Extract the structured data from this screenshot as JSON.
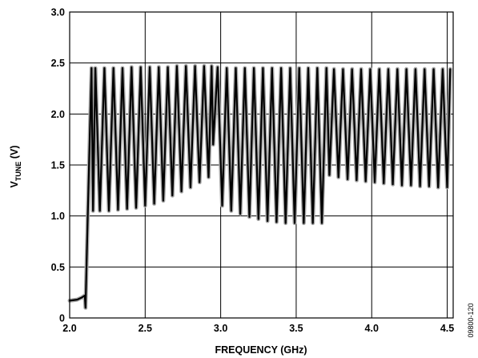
{
  "chart_data": {
    "type": "line",
    "xlabel": "FREQUENCY (GHz)",
    "ylabel": {
      "main": "V",
      "sub": "TUNE",
      "unit": " (V)"
    },
    "xlim": [
      2.0,
      4.5
    ],
    "ylim": [
      0,
      3.0
    ],
    "x_ticks": [
      2.0,
      2.5,
      3.0,
      3.5,
      4.0,
      4.5
    ],
    "x_tick_labels": [
      "2.0",
      "2.5",
      "3.0",
      "3.5",
      "4.0",
      "4.5"
    ],
    "y_ticks": [
      0,
      0.5,
      1.0,
      1.5,
      2.0,
      2.5,
      3.0
    ],
    "y_tick_labels": [
      "0",
      "0.5",
      "1.0",
      "1.5",
      "2.0",
      "2.5",
      "3.0"
    ],
    "grid": true,
    "series": [
      {
        "color": "#000000",
        "halo_color": "#a9a9a9",
        "x": [
          2.0,
          2.05,
          2.08,
          2.1,
          2.105,
          2.12,
          2.145,
          2.155,
          2.17,
          2.2,
          2.23,
          2.26,
          2.29,
          2.32,
          2.35,
          2.38,
          2.41,
          2.44,
          2.47,
          2.5,
          2.53,
          2.56,
          2.59,
          2.62,
          2.65,
          2.68,
          2.71,
          2.74,
          2.77,
          2.8,
          2.83,
          2.86,
          2.89,
          2.92,
          2.94,
          2.95,
          2.98,
          3.01,
          3.04,
          3.07,
          3.1,
          3.13,
          3.16,
          3.19,
          3.22,
          3.25,
          3.28,
          3.31,
          3.34,
          3.37,
          3.4,
          3.43,
          3.46,
          3.49,
          3.52,
          3.55,
          3.58,
          3.61,
          3.64,
          3.67,
          3.7,
          3.72,
          3.75,
          3.78,
          3.81,
          3.84,
          3.87,
          3.9,
          3.93,
          3.96,
          3.99,
          4.02,
          4.05,
          4.08,
          4.11,
          4.14,
          4.17,
          4.2,
          4.23,
          4.26,
          4.29,
          4.32,
          4.35,
          4.38,
          4.41,
          4.44,
          4.47,
          4.5,
          4.52
        ],
        "y": [
          0.17,
          0.18,
          0.2,
          0.22,
          0.1,
          1.0,
          2.45,
          1.05,
          2.45,
          1.05,
          2.45,
          1.05,
          2.45,
          1.06,
          2.45,
          1.07,
          2.46,
          1.08,
          2.46,
          1.1,
          2.46,
          1.12,
          2.46,
          1.15,
          2.46,
          1.2,
          2.47,
          1.24,
          2.47,
          1.28,
          2.47,
          1.33,
          2.47,
          1.38,
          2.47,
          1.7,
          2.46,
          1.1,
          2.45,
          1.05,
          2.45,
          1.02,
          2.45,
          0.99,
          2.45,
          0.97,
          2.45,
          0.95,
          2.45,
          0.94,
          2.45,
          0.93,
          2.45,
          0.93,
          2.45,
          0.93,
          2.45,
          0.93,
          2.45,
          0.93,
          2.45,
          1.4,
          2.44,
          1.38,
          2.44,
          1.36,
          2.44,
          1.35,
          2.44,
          1.34,
          2.44,
          1.33,
          2.44,
          1.32,
          2.44,
          1.31,
          2.44,
          1.3,
          2.44,
          1.3,
          2.44,
          1.29,
          2.44,
          1.29,
          2.44,
          1.28,
          2.44,
          1.28,
          2.44
        ]
      }
    ]
  },
  "figure_id": "09800-120"
}
